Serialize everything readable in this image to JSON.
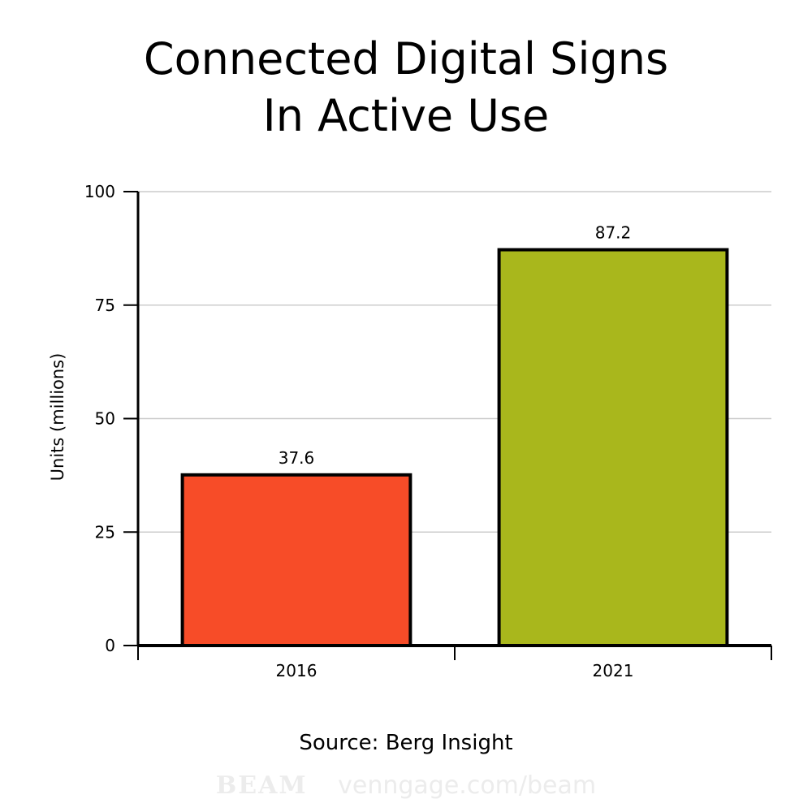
{
  "title_lines": [
    "Connected Digital Signs",
    "In Active Use"
  ],
  "source": "Source: Berg Insight",
  "watermark": {
    "logo": "BEAM",
    "url": "venngage.com/beam"
  },
  "chart_data": {
    "type": "bar",
    "categories": [
      "2016",
      "2021"
    ],
    "values": [
      37.6,
      87.2
    ],
    "value_labels": [
      "37.6",
      "87.2"
    ],
    "colors": [
      "#f74c28",
      "#a9b71c"
    ],
    "ylabel": "Units (millions)",
    "ylim": [
      0,
      100
    ],
    "yticks": [
      0,
      25,
      50,
      75,
      100
    ],
    "grid": true
  }
}
